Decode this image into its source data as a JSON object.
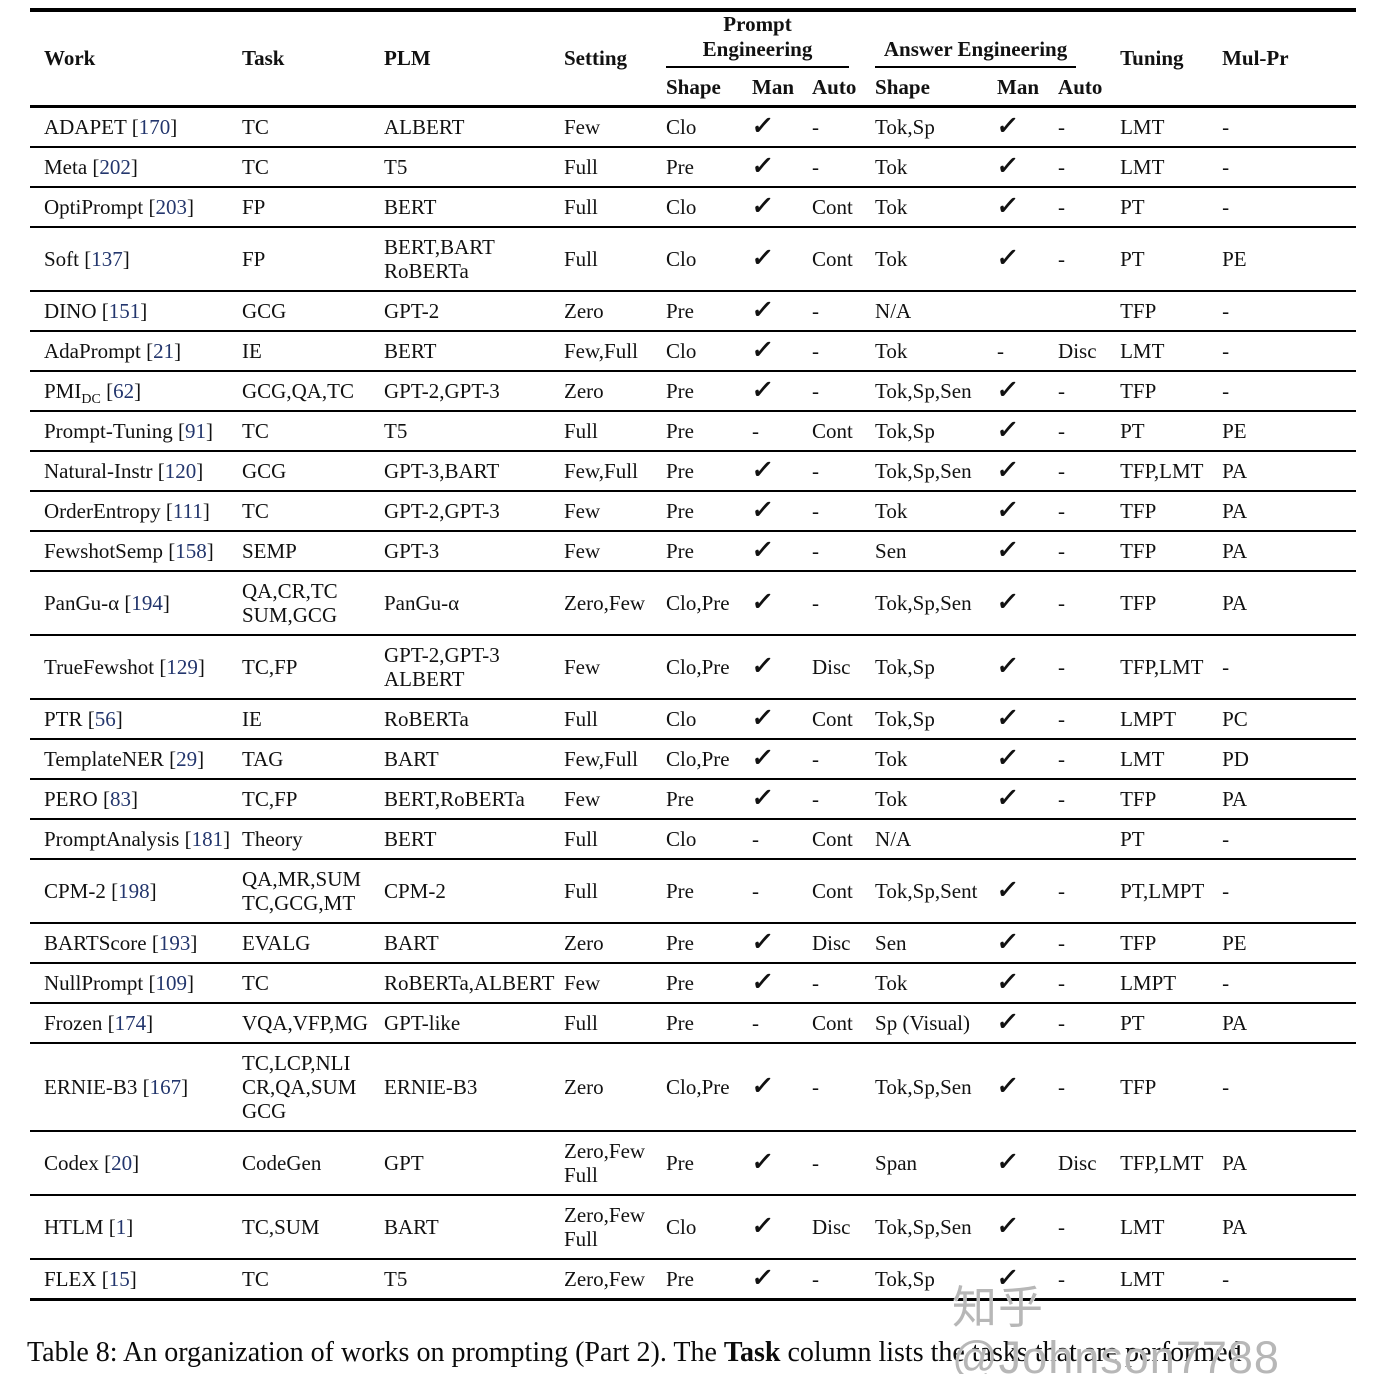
{
  "colors": {
    "citation": "#23366d",
    "watermark": "#b7b7b7",
    "text": "#111111"
  },
  "watermark": {
    "text": "知乎 @Johnson7788"
  },
  "caption": {
    "part1": "Table 8:  An organization of works on prompting (Part 2).  The ",
    "bold_word": "Task",
    "part2": " column lists the tasks that are performed"
  },
  "table": {
    "header": {
      "work": "Work",
      "task": "Task",
      "plm": "PLM",
      "setting": "Setting",
      "prompt_engineering": "Prompt Engineering",
      "answer_engineering": "Answer Engineering",
      "shape": "Shape",
      "man": "Man",
      "auto": "Auto",
      "tuning": "Tuning",
      "mulpr": "Mul-Pr"
    },
    "checkmark_icon": "✓",
    "rows": [
      {
        "work": {
          "name": "ADAPET",
          "cite": "170"
        },
        "cells": [
          "TC",
          "ALBERT",
          "Few",
          "Clo",
          "check",
          "-",
          "Tok,Sp",
          "check",
          "-",
          "LMT",
          "-"
        ]
      },
      {
        "work": {
          "name": "Meta",
          "cite": "202"
        },
        "cells": [
          "TC",
          "T5",
          "Full",
          "Pre",
          "check",
          "-",
          "Tok",
          "check",
          "-",
          "LMT",
          "-"
        ]
      },
      {
        "work": {
          "name": "OptiPrompt",
          "cite": "203"
        },
        "cells": [
          "FP",
          "BERT",
          "Full",
          "Clo",
          "check",
          "Cont",
          "Tok",
          "check",
          "-",
          "PT",
          "-"
        ]
      },
      {
        "work": {
          "name": "Soft",
          "cite": "137"
        },
        "cells": [
          "FP",
          "BERT,BART\nRoBERTa",
          "Full",
          "Clo",
          "check",
          "Cont",
          "Tok",
          "check",
          "-",
          "PT",
          "PE"
        ]
      },
      {
        "work": {
          "name": "DINO",
          "cite": "151"
        },
        "cells": [
          "GCG",
          "GPT-2",
          "Zero",
          "Pre",
          "check",
          "-",
          "N/A",
          "",
          "",
          "TFP",
          "-"
        ]
      },
      {
        "work": {
          "name": "AdaPrompt",
          "cite": "21"
        },
        "cells": [
          "IE",
          "BERT",
          "Few,Full",
          "Clo",
          "check",
          "-",
          "Tok",
          "-",
          "Disc",
          "LMT",
          "-"
        ]
      },
      {
        "work": {
          "name": "PMI",
          "sub": "DC",
          "cite": "62"
        },
        "cells": [
          "GCG,QA,TC",
          "GPT-2,GPT-3",
          "Zero",
          "Pre",
          "check",
          "-",
          "Tok,Sp,Sen",
          "check",
          "-",
          "TFP",
          "-"
        ]
      },
      {
        "work": {
          "name": "Prompt-Tuning",
          "cite": "91"
        },
        "cells": [
          "TC",
          "T5",
          "Full",
          "Pre",
          "-",
          "Cont",
          "Tok,Sp",
          "check",
          "-",
          "PT",
          "PE"
        ]
      },
      {
        "work": {
          "name": "Natural-Instr",
          "cite": "120"
        },
        "cells": [
          "GCG",
          "GPT-3,BART",
          "Few,Full",
          "Pre",
          "check",
          "-",
          "Tok,Sp,Sen",
          "check",
          "-",
          "TFP,LMT",
          "PA"
        ]
      },
      {
        "work": {
          "name": "OrderEntropy",
          "cite": "111"
        },
        "cells": [
          "TC",
          "GPT-2,GPT-3",
          "Few",
          "Pre",
          "check",
          "-",
          "Tok",
          "check",
          "-",
          "TFP",
          "PA"
        ]
      },
      {
        "work": {
          "name": "FewshotSemp",
          "cite": "158"
        },
        "cells": [
          "SEMP",
          "GPT-3",
          "Few",
          "Pre",
          "check",
          "-",
          "Sen",
          "check",
          "-",
          "TFP",
          "PA"
        ]
      },
      {
        "work": {
          "name": "PanGu-α",
          "cite": "194"
        },
        "cells": [
          "QA,CR,TC\nSUM,GCG",
          "PanGu-α",
          "Zero,Few",
          "Clo,Pre",
          "check",
          "-",
          "Tok,Sp,Sen",
          "check",
          "-",
          "TFP",
          "PA"
        ]
      },
      {
        "work": {
          "name": "TrueFewshot",
          "cite": "129"
        },
        "cells": [
          "TC,FP",
          "GPT-2,GPT-3\nALBERT",
          "Few",
          "Clo,Pre",
          "check",
          "Disc",
          "Tok,Sp",
          "check",
          "-",
          "TFP,LMT",
          "-"
        ]
      },
      {
        "work": {
          "name": "PTR",
          "cite": "56"
        },
        "cells": [
          "IE",
          "RoBERTa",
          "Full",
          "Clo",
          "check",
          "Cont",
          "Tok,Sp",
          "check",
          "-",
          "LMPT",
          "PC"
        ]
      },
      {
        "work": {
          "name": "TemplateNER",
          "cite": "29"
        },
        "cells": [
          "TAG",
          "BART",
          "Few,Full",
          "Clo,Pre",
          "check",
          "-",
          "Tok",
          "check",
          "-",
          "LMT",
          "PD"
        ]
      },
      {
        "work": {
          "name": "PERO",
          "cite": "83"
        },
        "cells": [
          "TC,FP",
          "BERT,RoBERTa",
          "Few",
          "Pre",
          "check",
          "-",
          "Tok",
          "check",
          "-",
          "TFP",
          "PA"
        ]
      },
      {
        "work": {
          "name": "PromptAnalysis",
          "cite": "181"
        },
        "cells": [
          "Theory",
          "BERT",
          "Full",
          "Clo",
          "-",
          "Cont",
          "N/A",
          "",
          "",
          "PT",
          "-"
        ]
      },
      {
        "work": {
          "name": "CPM-2",
          "cite": "198"
        },
        "cells": [
          "QA,MR,SUM\nTC,GCG,MT",
          "CPM-2",
          "Full",
          "Pre",
          "-",
          "Cont",
          "Tok,Sp,Sent",
          "check",
          "-",
          "PT,LMPT",
          "-"
        ]
      },
      {
        "work": {
          "name": "BARTScore",
          "cite": "193"
        },
        "cells": [
          "EVALG",
          "BART",
          "Zero",
          "Pre",
          "check",
          "Disc",
          "Sen",
          "check",
          "-",
          "TFP",
          "PE"
        ]
      },
      {
        "work": {
          "name": "NullPrompt",
          "cite": "109"
        },
        "cells": [
          "TC",
          "RoBERTa,ALBERT",
          "Few",
          "Pre",
          "check",
          "-",
          "Tok",
          "check",
          "-",
          "LMPT",
          "-"
        ]
      },
      {
        "work": {
          "name": "Frozen",
          "cite": "174"
        },
        "cells": [
          "VQA,VFP,MG",
          "GPT-like",
          "Full",
          "Pre",
          "-",
          "Cont",
          "Sp (Visual)",
          "check",
          "-",
          "PT",
          "PA"
        ]
      },
      {
        "work": {
          "name": "ERNIE-B3",
          "cite": "167"
        },
        "cells": [
          "TC,LCP,NLI\nCR,QA,SUM\nGCG",
          "ERNIE-B3",
          "Zero",
          "Clo,Pre",
          "check",
          "-",
          "Tok,Sp,Sen",
          "check",
          "-",
          "TFP",
          "-"
        ]
      },
      {
        "work": {
          "name": "Codex",
          "cite": "20"
        },
        "cells": [
          "CodeGen",
          "GPT",
          "Zero,Few\nFull",
          "Pre",
          "check",
          "-",
          "Span",
          "check",
          "Disc",
          "TFP,LMT",
          "PA"
        ]
      },
      {
        "work": {
          "name": "HTLM",
          "cite": "1"
        },
        "cells": [
          "TC,SUM",
          "BART",
          "Zero,Few\nFull",
          "Clo",
          "check",
          "Disc",
          "Tok,Sp,Sen",
          "check",
          "-",
          "LMT",
          "PA"
        ]
      },
      {
        "work": {
          "name": "FLEX",
          "cite": "15"
        },
        "cells": [
          "TC",
          "T5",
          "Zero,Few",
          "Pre",
          "check",
          "-",
          "Tok,Sp",
          "check",
          "-",
          "LMT",
          "-"
        ]
      }
    ]
  }
}
